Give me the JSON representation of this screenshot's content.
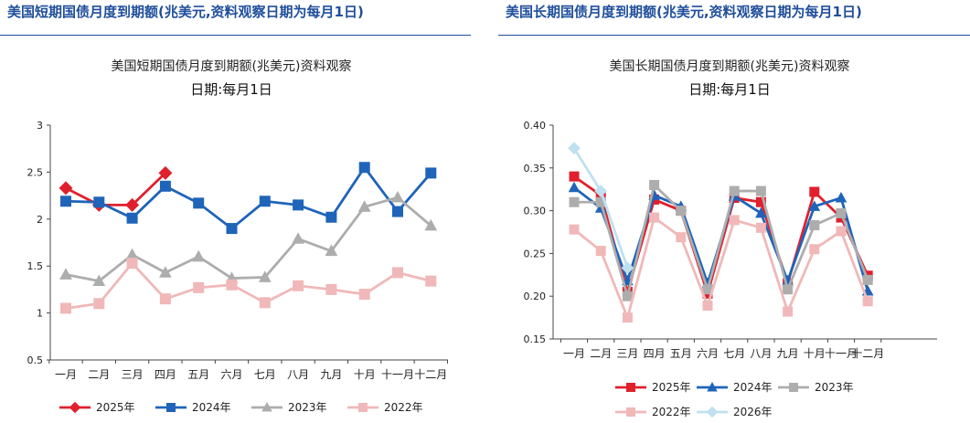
{
  "colors": {
    "header": "#1f4e9c"
  },
  "panels": [
    {
      "header": "美国短期国债月度到期额(兆美元,资料观察日期为每月1日)",
      "chart_data": {
        "type": "line",
        "title": "美国短期国债月度到期额(兆美元)资料观察",
        "subtitle": "日期:每月1日",
        "categories": [
          "一月",
          "二月",
          "三月",
          "四月",
          "五月",
          "六月",
          "七月",
          "八月",
          "九月",
          "十月",
          "十一月",
          "十二月"
        ],
        "ylim": [
          0.5,
          3
        ],
        "yticks": [
          "0.5",
          "1",
          "1.5",
          "2",
          "2.5",
          "3"
        ],
        "legend_position": "bottom",
        "series": [
          {
            "name": "2025年",
            "color": "#e0202c",
            "marker": "diamond",
            "values": [
              2.33,
              2.15,
              2.15,
              2.49,
              null,
              null,
              null,
              null,
              null,
              null,
              null,
              null
            ]
          },
          {
            "name": "2024年",
            "color": "#1f64b9",
            "marker": "square",
            "values": [
              2.19,
              2.18,
              2.01,
              2.35,
              2.17,
              1.9,
              2.19,
              2.15,
              2.02,
              2.55,
              2.08,
              2.49
            ]
          },
          {
            "name": "2023年",
            "color": "#adadad",
            "marker": "triangle",
            "values": [
              1.41,
              1.34,
              1.62,
              1.43,
              1.6,
              1.37,
              1.38,
              1.79,
              1.66,
              2.13,
              2.23,
              1.93
            ]
          },
          {
            "name": "2022年",
            "color": "#f0b8b8",
            "marker": "square",
            "values": [
              1.05,
              1.1,
              1.53,
              1.15,
              1.27,
              1.3,
              1.11,
              1.29,
              1.25,
              1.2,
              1.43,
              1.34
            ]
          }
        ]
      }
    },
    {
      "header": "美国长期国债月度到期额(兆美元,资料观察日期为每月1日)",
      "chart_data": {
        "type": "line",
        "title": "美国长期国债月度到期额(兆美元)资料观察",
        "subtitle": "日期:每月1日",
        "categories": [
          "一月",
          "二月",
          "三月",
          "四月",
          "五月",
          "六月",
          "七月",
          "八月",
          "九月",
          "十月",
          "十一月",
          "十二月"
        ],
        "ylim": [
          0.15,
          0.4
        ],
        "yticks": [
          "0.15",
          "0.20",
          "0.25",
          "0.30",
          "0.35",
          "0.40"
        ],
        "legend_position": "bottom",
        "series": [
          {
            "name": "2025年",
            "color": "#e0202c",
            "marker": "square",
            "values": [
              0.34,
              0.318,
              0.205,
              0.313,
              0.3,
              0.203,
              0.315,
              0.31,
              0.215,
              0.322,
              0.292,
              0.224
            ]
          },
          {
            "name": "2024年",
            "color": "#1f64b9",
            "marker": "triangle",
            "values": [
              0.327,
              0.303,
              0.218,
              0.318,
              0.305,
              0.215,
              0.317,
              0.297,
              0.218,
              0.305,
              0.315,
              0.206
            ]
          },
          {
            "name": "2023年",
            "color": "#adadad",
            "marker": "square",
            "values": [
              0.31,
              0.31,
              0.2,
              0.33,
              0.3,
              0.208,
              0.323,
              0.323,
              0.208,
              0.283,
              0.297,
              0.219
            ]
          },
          {
            "name": "2022年",
            "color": "#f0b8b8",
            "marker": "square",
            "values": [
              0.278,
              0.253,
              0.175,
              0.292,
              0.269,
              0.189,
              0.289,
              0.28,
              0.182,
              0.255,
              0.276,
              0.194
            ]
          },
          {
            "name": "2026年",
            "color": "#bfe0ef",
            "marker": "diamond",
            "values": [
              0.373,
              0.323,
              0.233,
              null,
              null,
              null,
              null,
              null,
              null,
              null,
              null,
              null
            ]
          }
        ]
      }
    }
  ]
}
